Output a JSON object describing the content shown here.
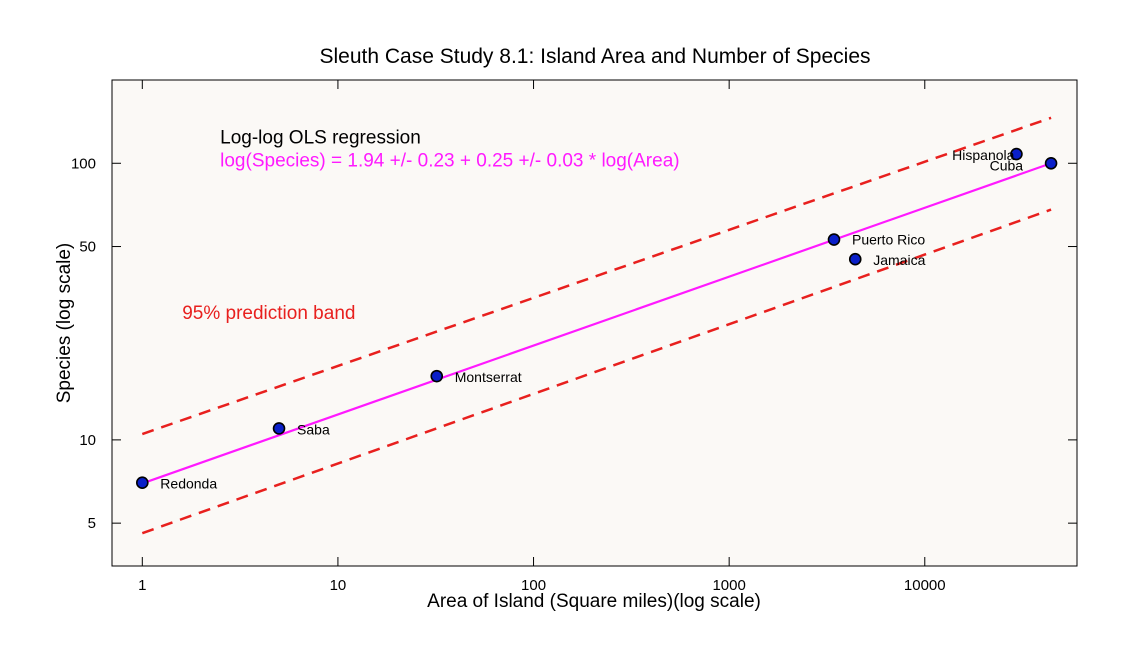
{
  "chart_data": {
    "type": "scatter",
    "title": "Sleuth Case Study 8.1: Island Area and Number of Species",
    "xlabel": "Area of Island (Square miles)(log scale)",
    "ylabel": "Species (log scale)",
    "x_scale": "log",
    "y_scale": "log",
    "xlim": [
      0.7,
      60000
    ],
    "ylim": [
      3.5,
      200
    ],
    "x_ticks": [
      1,
      10,
      100,
      1000,
      10000
    ],
    "x_tick_labels": [
      "1",
      "10",
      "100",
      "1000",
      "10000"
    ],
    "y_ticks": [
      5,
      10,
      50,
      100
    ],
    "y_tick_labels": [
      "5",
      "10",
      "50",
      "100"
    ],
    "grid": false,
    "points": [
      {
        "label": "Redonda",
        "x": 1,
        "y": 7
      },
      {
        "label": "Saba",
        "x": 5,
        "y": 11
      },
      {
        "label": "Montserrat",
        "x": 32,
        "y": 17
      },
      {
        "label": "Puerto Rico",
        "x": 3435,
        "y": 53
      },
      {
        "label": "Jamaica",
        "x": 4411,
        "y": 45
      },
      {
        "label": "Hispanola",
        "x": 29418,
        "y": 108
      },
      {
        "label": "Cuba",
        "x": 44218,
        "y": 100
      }
    ],
    "fit": {
      "type": "line",
      "x": [
        1,
        44218
      ],
      "y": [
        6.96,
        100
      ]
    },
    "prediction_band": {
      "type": "dashed",
      "upper": {
        "x": [
          1,
          44218
        ],
        "y": [
          10.5,
          146
        ]
      },
      "lower": {
        "x": [
          1,
          44218
        ],
        "y": [
          4.6,
          68
        ]
      }
    },
    "annotations": [
      {
        "text": "Log-log OLS regression",
        "x": 2.5,
        "y": 125
      },
      {
        "text": "log(Species) = 1.94 +/- 0.23 + 0.25 +/- 0.03 * log(Area)",
        "x": 2.5,
        "y": 103
      },
      {
        "text": "95% prediction band",
        "x": 1.6,
        "y": 29
      }
    ]
  },
  "colors": {
    "background": "#ffffff",
    "plot_area": "#fbf9f6",
    "marker_fill": "#0a1fc9",
    "marker_edge": "#000000",
    "fit_line": "#ff1aff",
    "band_line": "#e8201e",
    "annotation_regression": "#ff1aff",
    "annotation_band": "#e8201e",
    "text": "#000000"
  }
}
